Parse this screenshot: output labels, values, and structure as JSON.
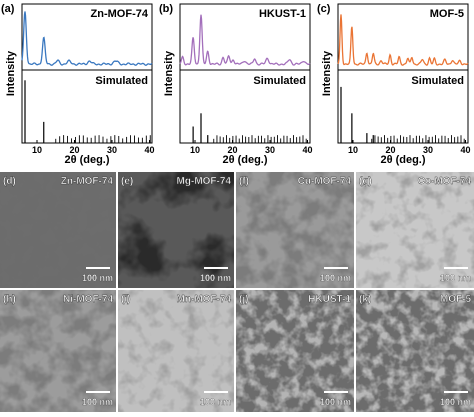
{
  "panels": [
    {
      "label": "(a)",
      "title": "Zn-MOF-74",
      "y_label": "Intensity",
      "simulated_label": "Simulated",
      "x_label": "2θ (deg.)",
      "x_ticks": [
        10,
        20,
        30,
        40
      ]
    },
    {
      "label": "(b)",
      "title": "HKUST-1",
      "y_label": "Intensity",
      "simulated_label": "Simulated",
      "x_label": "2θ (deg.)",
      "x_ticks": [
        10,
        20,
        30,
        40
      ]
    },
    {
      "label": "(c)",
      "title": "MOF-5",
      "y_label": "Intensity",
      "simulated_label": "Simulated",
      "x_label": "2θ (deg.)",
      "x_ticks": [
        10,
        20,
        30,
        40
      ]
    }
  ],
  "images": [
    {
      "label": "(d)",
      "title": "Zn-MOF-74",
      "scale_bar": "100 nm"
    },
    {
      "label": "(e)",
      "title": "Mg-MOF-74",
      "scale_bar": "100 nm"
    },
    {
      "label": "(f)",
      "title": "Cu-MOF-74",
      "scale_bar": "100 nm"
    },
    {
      "label": "(g)",
      "title": "Co-MOF-74",
      "scale_bar": "100 nm"
    },
    {
      "label": "(h)",
      "title": "Ni-MOF-74",
      "scale_bar": "100 nm"
    },
    {
      "label": "(i)",
      "title": "Mn-MOF-74",
      "scale_bar": "100 nm"
    },
    {
      "label": "(j)",
      "title": "HKUST-1",
      "scale_bar": "100 nm"
    },
    {
      "label": "(k)",
      "title": "MOF-5",
      "scale_bar": "100 nm"
    }
  ]
}
